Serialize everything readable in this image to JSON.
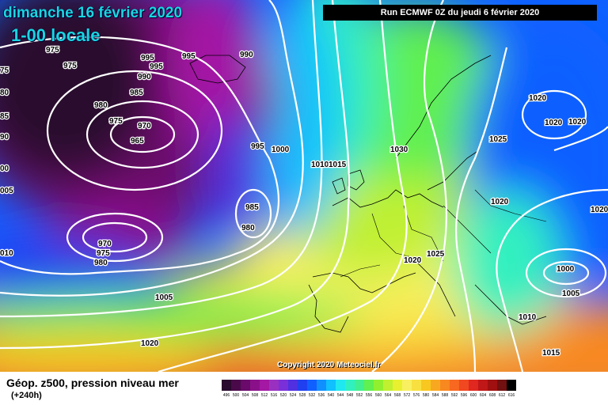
{
  "map": {
    "date_label": "dimanche 16 février 2020",
    "time_label": "1-00 locale",
    "run_label": "Run ECMWF 0Z du jeudi 6 février 2020",
    "copyright": "Copyright 2020 Meteociel.fr",
    "isobar_labels": [
      "975",
      "975",
      "995",
      "995",
      "995",
      "990",
      "990",
      "985",
      "980",
      "975",
      "970",
      "965",
      "985",
      "995",
      "1000",
      "1010",
      "1015",
      "1030",
      "1020",
      "1020",
      "1020",
      "1025",
      "1020",
      "1000",
      "1005",
      "1010",
      "1015",
      "1020",
      "1025",
      "1020",
      "985",
      "980",
      "970",
      "975",
      "980",
      "1005",
      "1020",
      "005",
      "010",
      "75",
      "80",
      "85",
      "90",
      "00"
    ]
  },
  "footer": {
    "title": "Géop. z500, pression niveau mer",
    "subtitle": "(+240h)"
  },
  "legend": {
    "labels": [
      "496",
      "500",
      "504",
      "508",
      "512",
      "516",
      "520",
      "524",
      "528",
      "532",
      "536",
      "540",
      "544",
      "548",
      "552",
      "556",
      "560",
      "564",
      "568",
      "572",
      "576",
      "580",
      "584",
      "588",
      "592",
      "596",
      "600",
      "604",
      "608",
      "612",
      "616"
    ],
    "colors": [
      "#2a0a2e",
      "#4a0a4a",
      "#6a0a6a",
      "#8a108a",
      "#a418a4",
      "#9a30c0",
      "#7a30d8",
      "#5030e0",
      "#2040f0",
      "#1060ff",
      "#1090ff",
      "#10c0ff",
      "#20e8f0",
      "#30f0c0",
      "#40f090",
      "#60f050",
      "#90f030",
      "#c0f030",
      "#e8f030",
      "#f8f060",
      "#f8e040",
      "#f8c820",
      "#f8a820",
      "#f88820",
      "#f86820",
      "#f04820",
      "#e02820",
      "#c01818",
      "#a01010",
      "#701010",
      "#000000"
    ]
  }
}
